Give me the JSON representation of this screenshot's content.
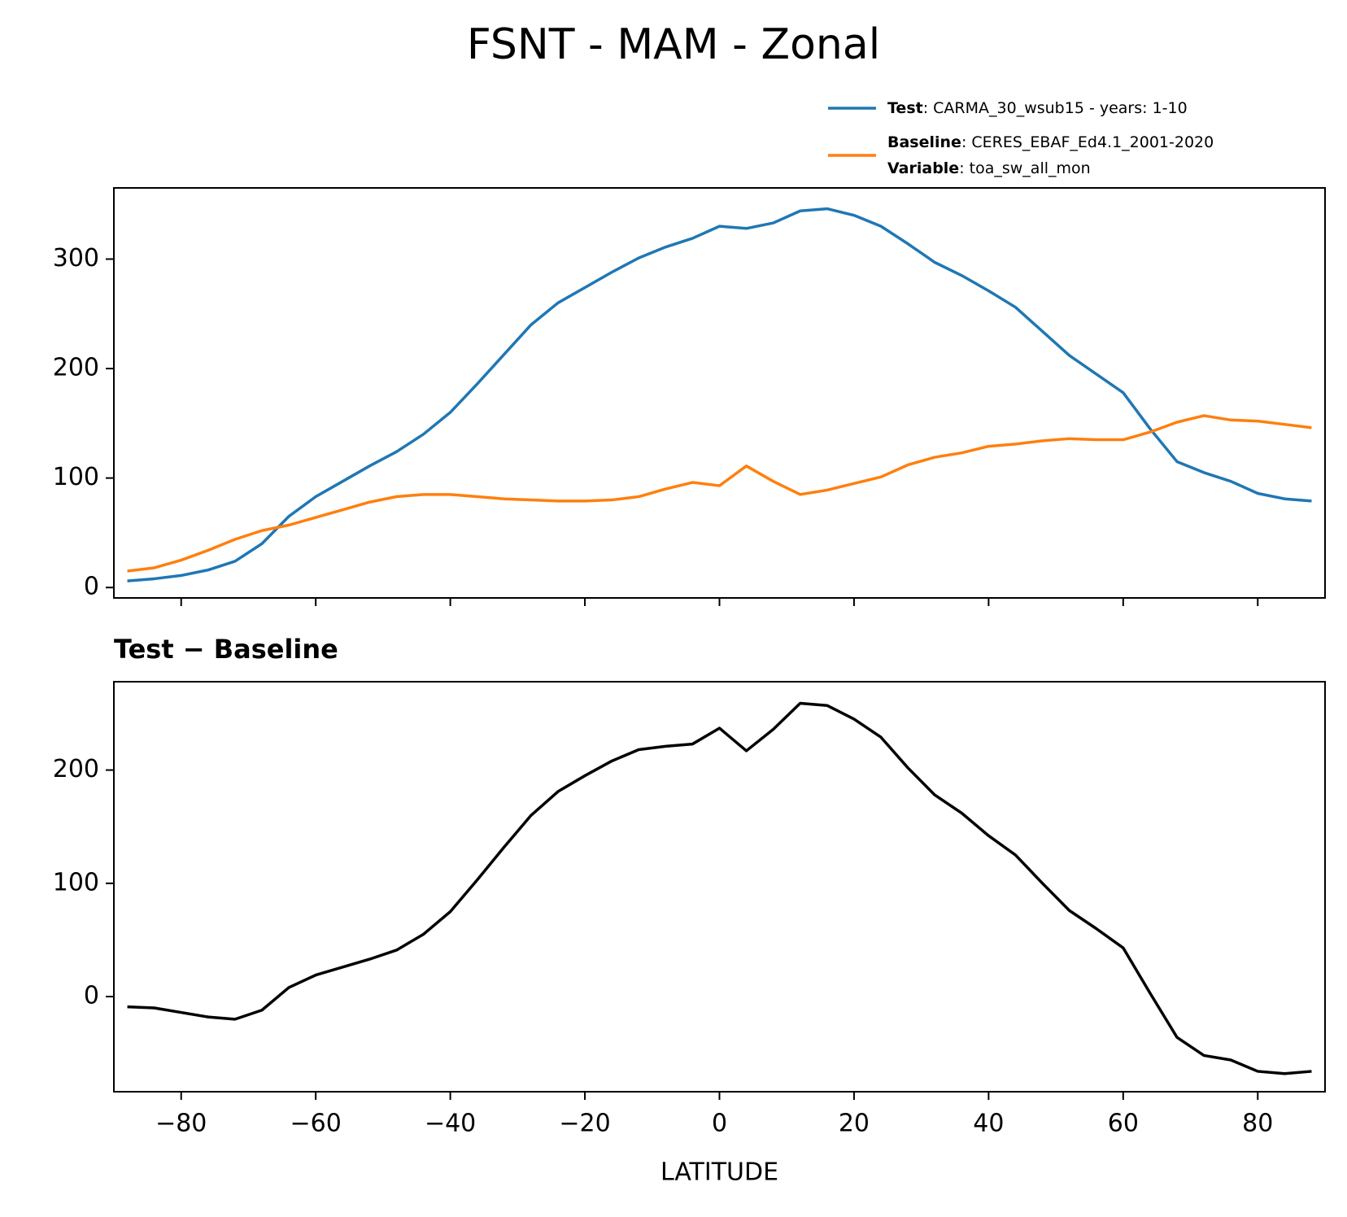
{
  "chart_data": [
    {
      "type": "line",
      "title": "FSNT - MAM - Zonal",
      "x": [
        -88,
        -84,
        -80,
        -76,
        -72,
        -68,
        -64,
        -60,
        -56,
        -52,
        -48,
        -44,
        -40,
        -36,
        -32,
        -28,
        -24,
        -20,
        -16,
        -12,
        -8,
        -4,
        0,
        4,
        8,
        12,
        16,
        20,
        24,
        28,
        32,
        36,
        40,
        44,
        48,
        52,
        56,
        60,
        64,
        68,
        72,
        76,
        80,
        84,
        88
      ],
      "series": [
        {
          "name": "Test",
          "legend_text": ": CARMA_30_wsub15 - years: 1-10",
          "color": "#1f77b4",
          "values": [
            6,
            8,
            11,
            16,
            24,
            40,
            65,
            83,
            97,
            111,
            124,
            140,
            160,
            186,
            213,
            240,
            260,
            274,
            288,
            301,
            311,
            319,
            330,
            328,
            333,
            344,
            346,
            340,
            330,
            314,
            297,
            285,
            271,
            256,
            234,
            212,
            195,
            178,
            145,
            115,
            105,
            97,
            86,
            81,
            79
          ]
        },
        {
          "name": "Baseline",
          "legend_text": ": CERES_EBAF_Ed4.1_2001-2020",
          "variable_label": "Variable",
          "variable_text": ": toa_sw_all_mon",
          "color": "#ff7f0e",
          "values": [
            15,
            18,
            25,
            34,
            44,
            52,
            57,
            64,
            71,
            78,
            83,
            85,
            85,
            83,
            81,
            80,
            79,
            79,
            80,
            83,
            90,
            96,
            93,
            111,
            97,
            85,
            89,
            95,
            101,
            112,
            119,
            123,
            129,
            131,
            134,
            136,
            135,
            135,
            142,
            151,
            157,
            153,
            152,
            149,
            146
          ]
        }
      ],
      "xlim": [
        -90,
        90
      ],
      "xticks": [
        -80,
        -60,
        -40,
        -20,
        0,
        20,
        40,
        60,
        80
      ],
      "xtick_labels": false,
      "ylim": [
        -9.5,
        365
      ],
      "yticks": [
        0,
        100,
        200,
        300
      ]
    },
    {
      "type": "line",
      "title": "Test − Baseline",
      "xlabel": "LATITUDE",
      "x": [
        -88,
        -84,
        -80,
        -76,
        -72,
        -68,
        -64,
        -60,
        -56,
        -52,
        -48,
        -44,
        -40,
        -36,
        -32,
        -28,
        -24,
        -20,
        -16,
        -12,
        -8,
        -4,
        0,
        4,
        8,
        12,
        16,
        20,
        24,
        28,
        32,
        36,
        40,
        44,
        48,
        52,
        56,
        60,
        64,
        68,
        72,
        76,
        80,
        84,
        88
      ],
      "series": [
        {
          "color": "#000000",
          "values": [
            -9,
            -10,
            -14,
            -18,
            -20,
            -12,
            8,
            19,
            26,
            33,
            41,
            55,
            75,
            103,
            132,
            160,
            181,
            195,
            208,
            218,
            221,
            223,
            237,
            217,
            236,
            259,
            257,
            245,
            229,
            202,
            178,
            162,
            142,
            125,
            100,
            76,
            60,
            43,
            3,
            -36,
            -52,
            -56,
            -66,
            -68,
            -66
          ]
        }
      ],
      "xlim": [
        -90,
        90
      ],
      "xticks": [
        {
          "value": -80,
          "label": "−80"
        },
        {
          "value": -60,
          "label": "−60"
        },
        {
          "value": -40,
          "label": "−40"
        },
        {
          "value": -20,
          "label": "−20"
        },
        0,
        20,
        40,
        60,
        80
      ],
      "xtick_labels": true,
      "ylim": [
        -84,
        278
      ],
      "yticks": [
        0,
        100,
        200
      ]
    }
  ]
}
